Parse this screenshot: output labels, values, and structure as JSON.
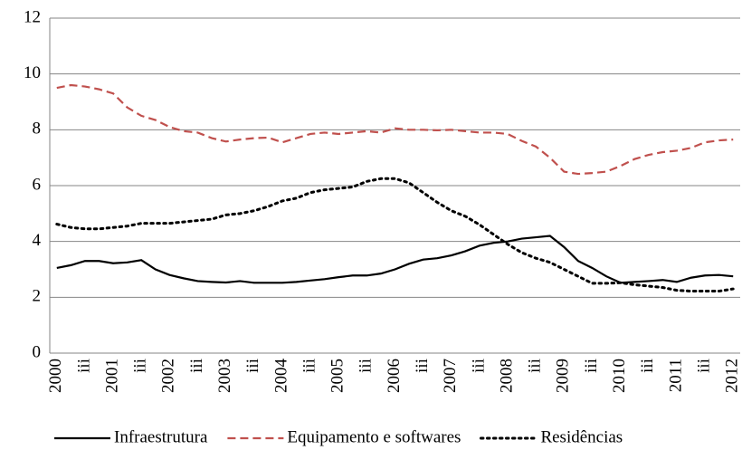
{
  "chart_data": {
    "type": "line",
    "categories": [
      "2000",
      null,
      "iii",
      null,
      "2001",
      null,
      "iii",
      null,
      "2002",
      null,
      "iii",
      null,
      "2003",
      null,
      "iii",
      null,
      "2004",
      null,
      "iii",
      null,
      "2005",
      null,
      "iii",
      null,
      "2006",
      null,
      "iii",
      null,
      "2007",
      null,
      "iii",
      null,
      "2008",
      null,
      "iii",
      null,
      "2009",
      null,
      "iii",
      null,
      "2010",
      null,
      "iii",
      null,
      "2011",
      null,
      "iii",
      null,
      "2012"
    ],
    "series": [
      {
        "name": "Infraestrutura",
        "color": "#000000",
        "style": "solid",
        "values": [
          3.05,
          3.15,
          3.3,
          3.3,
          3.22,
          3.25,
          3.33,
          3.0,
          2.8,
          2.68,
          2.58,
          2.55,
          2.53,
          2.58,
          2.52,
          2.52,
          2.52,
          2.55,
          2.6,
          2.65,
          2.72,
          2.78,
          2.78,
          2.85,
          3.0,
          3.2,
          3.35,
          3.4,
          3.5,
          3.65,
          3.85,
          3.95,
          4.0,
          4.1,
          4.15,
          4.2,
          3.8,
          3.3,
          3.05,
          2.75,
          2.52,
          2.55,
          2.58,
          2.62,
          2.55,
          2.7,
          2.78,
          2.8,
          2.75
        ]
      },
      {
        "name": "Equipamento e softwares",
        "color": "#c0504d",
        "style": "dashed",
        "values": [
          9.5,
          9.6,
          9.55,
          9.45,
          9.3,
          8.8,
          8.5,
          8.35,
          8.1,
          7.95,
          7.9,
          7.7,
          7.58,
          7.65,
          7.7,
          7.72,
          7.55,
          7.7,
          7.85,
          7.9,
          7.85,
          7.9,
          7.95,
          7.9,
          8.05,
          8.0,
          8.0,
          7.98,
          8.0,
          7.95,
          7.9,
          7.9,
          7.85,
          7.6,
          7.4,
          7.0,
          6.5,
          6.42,
          6.45,
          6.5,
          6.7,
          6.95,
          7.1,
          7.2,
          7.25,
          7.35,
          7.55,
          7.62,
          7.65
        ]
      },
      {
        "name": "Residências",
        "color": "#000000",
        "style": "dotted",
        "values": [
          4.62,
          4.5,
          4.45,
          4.45,
          4.5,
          4.55,
          4.65,
          4.65,
          4.65,
          4.7,
          4.75,
          4.8,
          4.95,
          5.0,
          5.1,
          5.25,
          5.45,
          5.55,
          5.75,
          5.85,
          5.9,
          5.95,
          6.15,
          6.25,
          6.25,
          6.1,
          5.75,
          5.4,
          5.1,
          4.9,
          4.6,
          4.25,
          3.9,
          3.6,
          3.4,
          3.25,
          3.0,
          2.75,
          2.5,
          2.5,
          2.52,
          2.45,
          2.4,
          2.35,
          2.25,
          2.22,
          2.22,
          2.22,
          2.3
        ]
      }
    ],
    "ylim": [
      0,
      12
    ],
    "yticks": [
      0,
      2,
      4,
      6,
      8,
      10,
      12
    ],
    "grid": true,
    "legend": "bottom"
  }
}
